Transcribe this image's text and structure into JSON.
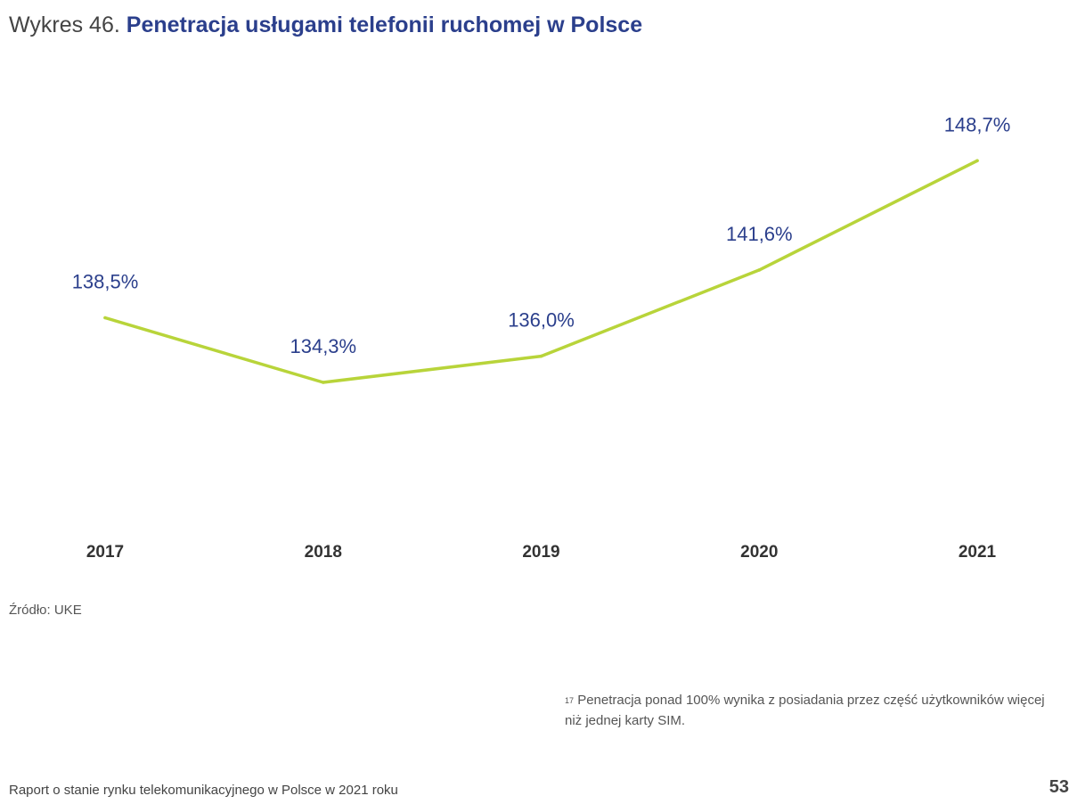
{
  "header": {
    "prefix": "Wykres 46.",
    "title": "Penetracja usługami telefonii ruchomej w Polsce"
  },
  "chart_data": {
    "type": "line",
    "title": "Penetracja usługami telefonii ruchomej w Polsce",
    "xlabel": "",
    "ylabel": "",
    "categories": [
      "2017",
      "2018",
      "2019",
      "2020",
      "2021"
    ],
    "values": [
      138.5,
      134.3,
      136.0,
      141.6,
      148.7
    ],
    "value_labels": [
      "138,5%",
      "134,3%",
      "136,0%",
      "141,6%",
      "148,7%"
    ],
    "unit": "%",
    "grid": false,
    "legend": "none",
    "line_color": "#b8d43a",
    "label_color": "#2b3f8c"
  },
  "source": "Źródło: UKE",
  "footnote": {
    "marker": "17",
    "text": "Penetracja ponad 100% wynika z posiadania przez część użytkowników więcej niż jednej karty SIM."
  },
  "footer": {
    "report": "Raport o stanie rynku telekomunikacyjnego w Polsce w 2021 roku",
    "page": "53"
  }
}
